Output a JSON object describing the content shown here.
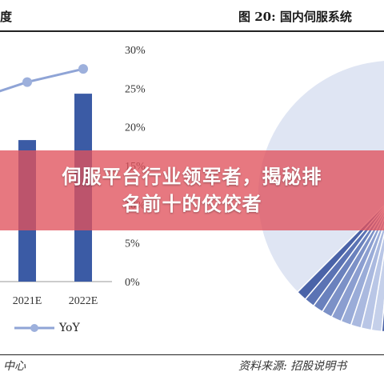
{
  "header": {
    "left_title": "度",
    "right_title": "图 20: 国内伺服系统"
  },
  "banner": {
    "line1": "伺服平台行业领军者，揭秘排",
    "line2": "名前十的佼佼者"
  },
  "footer": {
    "left": "中心",
    "right": "资料来源: 招股说明书"
  },
  "chart_data": [
    {
      "type": "bar",
      "categories": [
        "",
        "2021E",
        "2022E"
      ],
      "series": [
        {
          "name": "",
          "values": [
            null,
            18.3,
            24.3
          ]
        },
        {
          "name": "YoY",
          "type": "line",
          "values": [
            24.3,
            25.8,
            27.5
          ]
        }
      ],
      "y_right_ticks": [
        "30%",
        "25%",
        "20%",
        "15%",
        "10%",
        "5%",
        "0%"
      ],
      "y_right_lim": [
        0,
        30
      ],
      "legend": [
        "YoY"
      ],
      "colors": {
        "bar": "#3b5ba5",
        "line": "#8fa4d6",
        "marker": "#9db0dc"
      }
    },
    {
      "type": "pie",
      "note": "partially visible pie, right edge cropped",
      "colors": [
        "#4a63a8",
        "#5b73b4",
        "#6a81bd",
        "#7c91c7",
        "#8b9ed0",
        "#9aacd8",
        "#aab9df",
        "#b9c6e6",
        "#c5d0ea"
      ]
    }
  ]
}
